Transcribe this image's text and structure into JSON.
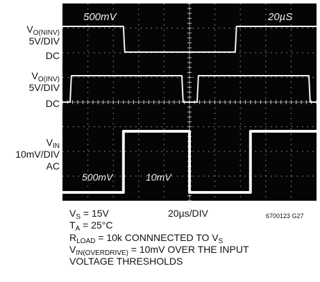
{
  "chart_data": {
    "type": "line",
    "title": "",
    "xlabel": "",
    "ylabel": "",
    "grid": true,
    "divisions": {
      "x": 10,
      "y": 8
    },
    "xlim": [
      0,
      200
    ],
    "x_unit": "µs",
    "series": [
      {
        "label_main": "V",
        "label_sub": "O(NINV)",
        "scale": "5V/DIV",
        "coupling": "DC",
        "x": [
          0,
          48,
          49,
          136,
          137,
          200
        ],
        "y": [
          1.0,
          1.0,
          0.0,
          0.0,
          1.0,
          1.0
        ]
      },
      {
        "label_main": "V",
        "label_sub": "O(INV)",
        "scale": "5V/DIV",
        "coupling": "DC",
        "x": [
          0,
          6,
          7,
          94,
          95,
          106,
          107,
          194,
          195,
          200
        ],
        "y": [
          0.0,
          0.0,
          1.0,
          1.0,
          0.0,
          0.0,
          1.0,
          1.0,
          0.0,
          0.0
        ]
      },
      {
        "label_main": "V",
        "label_sub": "IN",
        "scale": "10mV/DIV",
        "coupling": "AC",
        "x": [
          0,
          48,
          48,
          100,
          100,
          148,
          148,
          200
        ],
        "y": [
          0.0,
          0.0,
          1.0,
          1.0,
          0.0,
          0.0,
          1.0,
          1.0
        ]
      }
    ]
  },
  "screen_text": {
    "top_left": "500mV",
    "top_right": "20µS",
    "bottom_left": "500mV",
    "bottom_mid": "10mV"
  },
  "notes": {
    "vs_main": "V",
    "vs_sub": "S",
    "vs_val": " = 15V",
    "timebase": "20µs/DIV",
    "ta_main": "T",
    "ta_sub": "A",
    "ta_val": " = 25°C",
    "rl_main": "R",
    "rl_sub": "LOAD",
    "rl_val": " = 10k CONNNECTED TO V",
    "rl_sub2": "S",
    "vin_main": "V",
    "vin_sub": "IN(OVERDRIVE)",
    "vin_val": " = 10mV OVER THE INPUT",
    "vin_line2": "VOLTAGE THRESHOLDS"
  },
  "figure_id": "6700123 G27",
  "colors": {
    "screen": "#050505",
    "grid": "#dcdcdc",
    "trace": "#f4f4f4"
  }
}
